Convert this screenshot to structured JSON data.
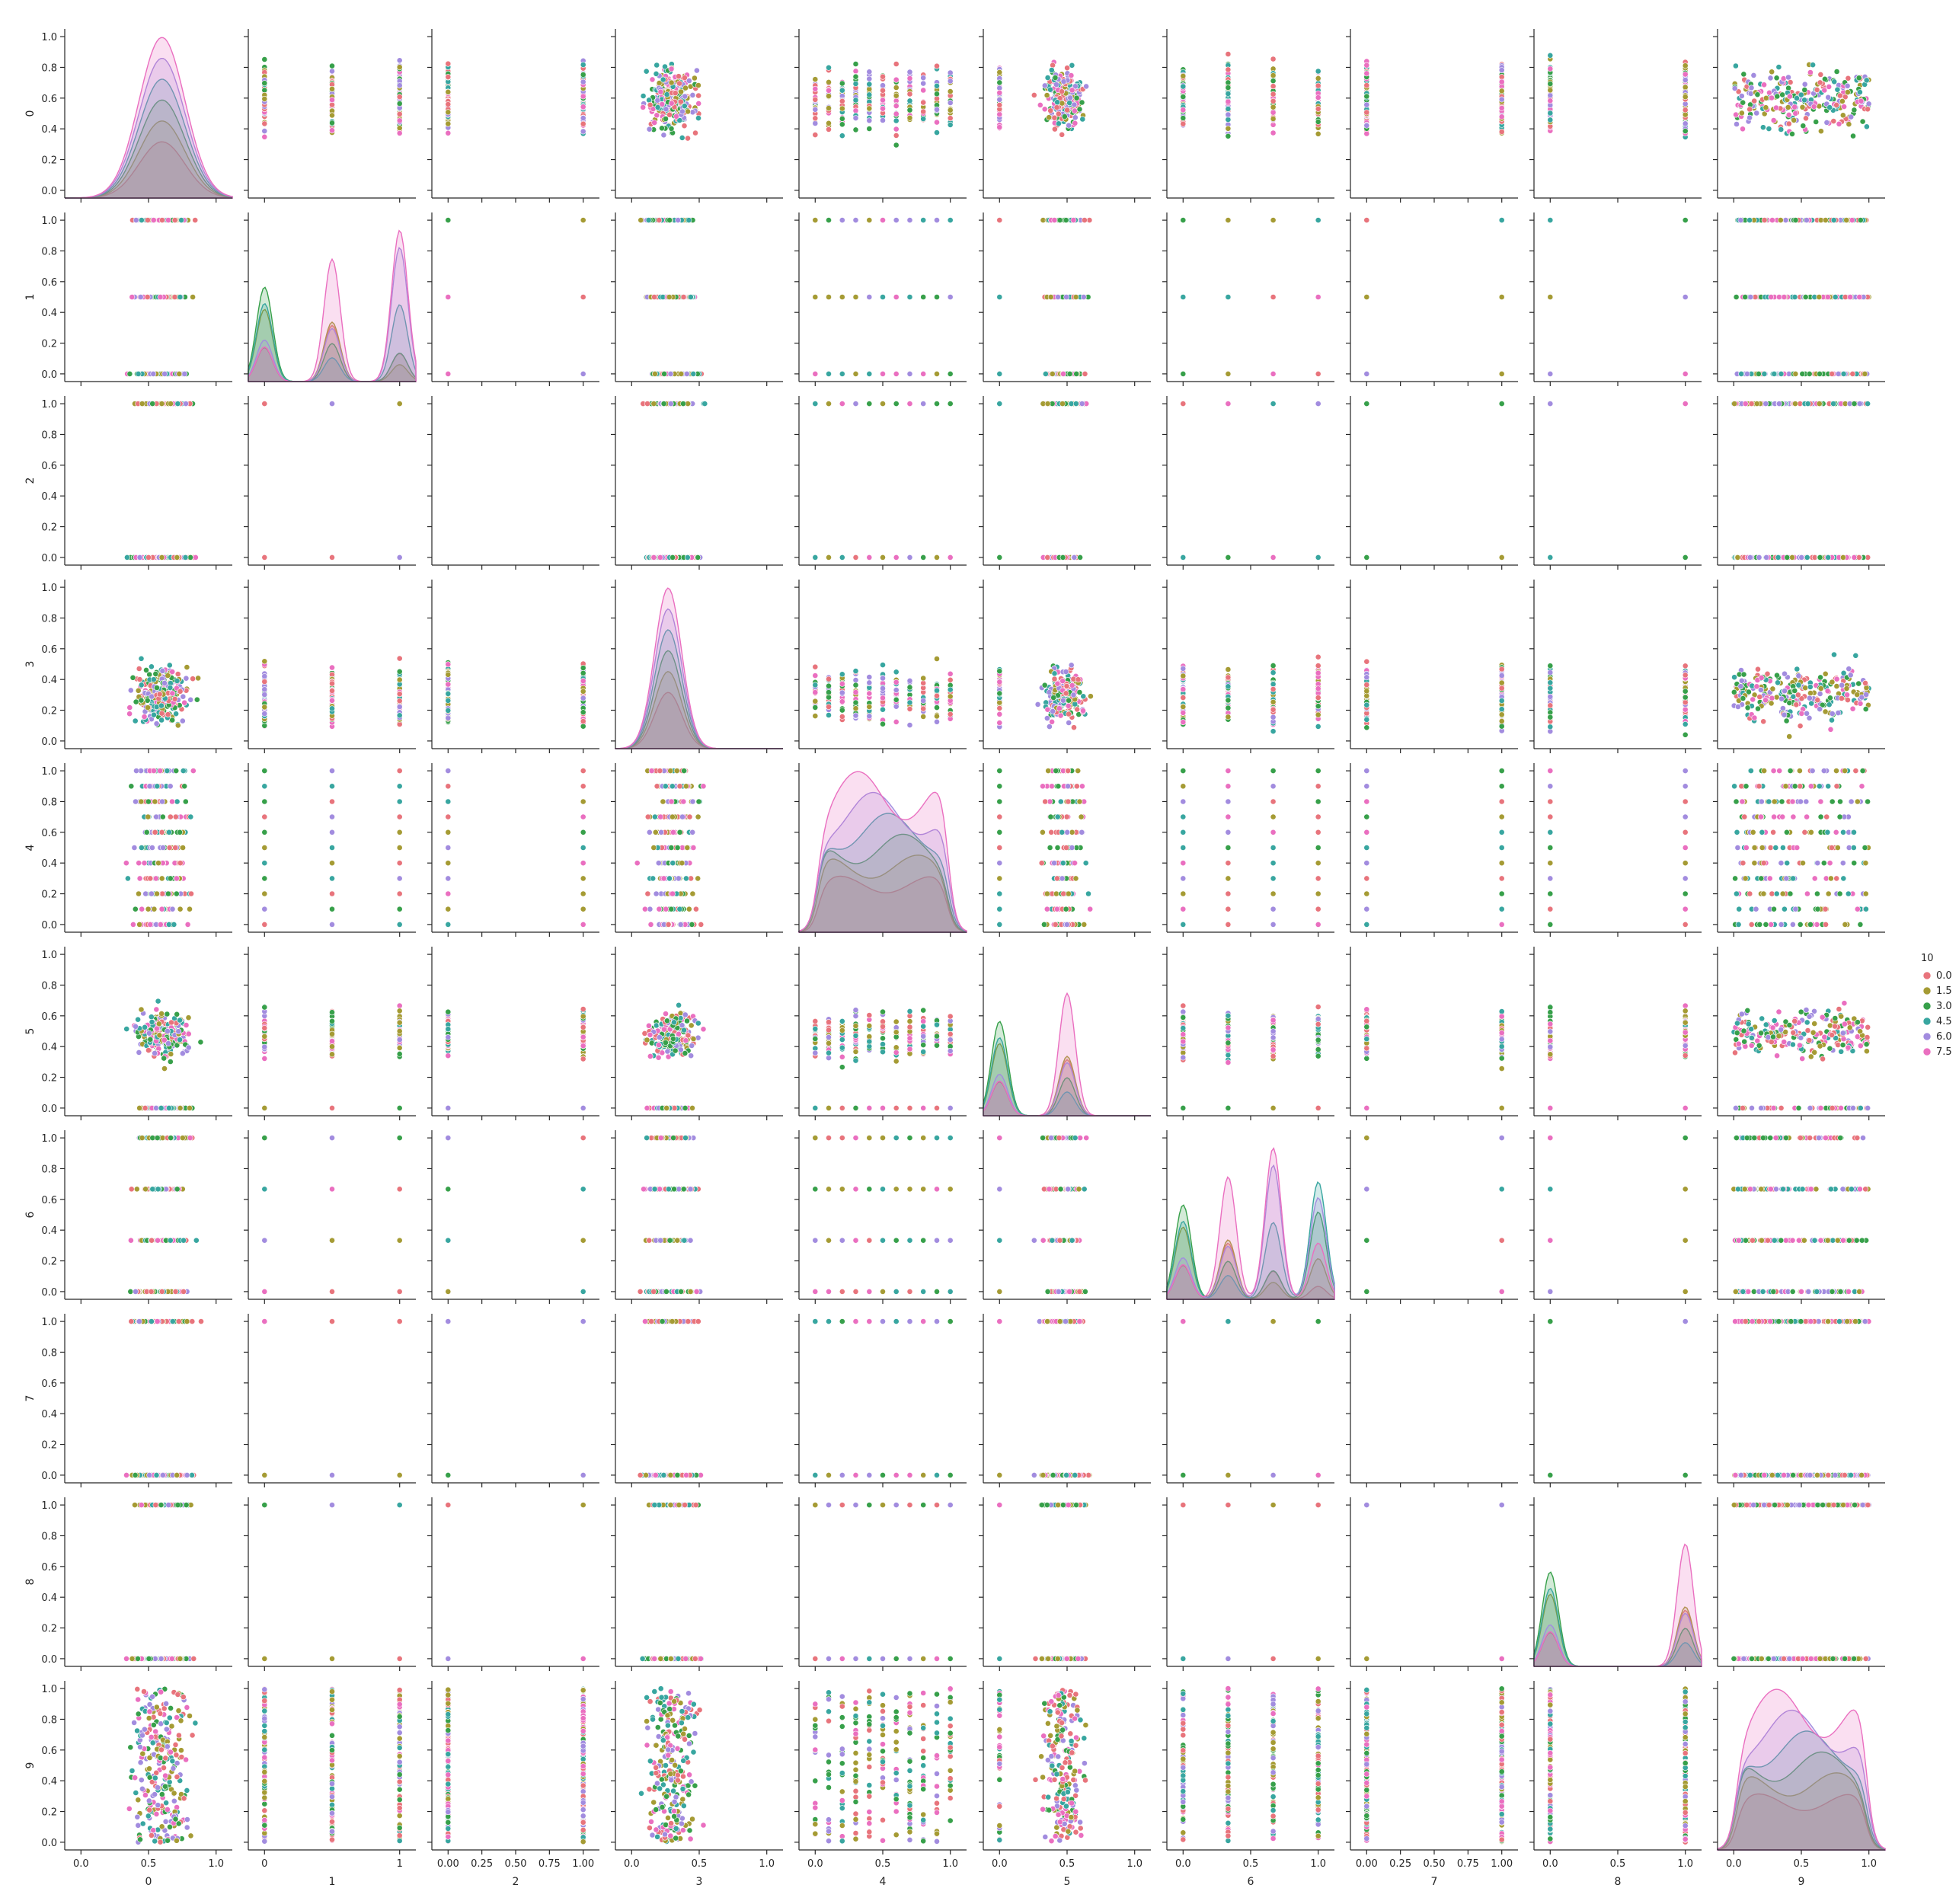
{
  "chart_data": {
    "type": "pairplot",
    "variables": [
      "0",
      "1",
      "2",
      "3",
      "4",
      "5",
      "6",
      "7",
      "8",
      "9"
    ],
    "hue": {
      "title": "10",
      "levels": [
        {
          "label": "0.0",
          "color": "#e8747c"
        },
        {
          "label": "1.5",
          "color": "#a59b34"
        },
        {
          "label": "3.0",
          "color": "#37a04a"
        },
        {
          "label": "4.5",
          "color": "#38a6a0"
        },
        {
          "label": "6.0",
          "color": "#a28cdf"
        },
        {
          "label": "7.5",
          "color": "#ea6fc0"
        }
      ]
    },
    "legend": "right",
    "grid": false,
    "ylim": [
      0,
      1
    ],
    "x_ticks": [
      [
        "0.0",
        "0.5",
        "1.0"
      ],
      [
        "0",
        "1"
      ],
      [
        "0.00",
        "0.25",
        "0.50",
        "0.75",
        "1.00"
      ],
      [
        "0.0",
        "0.5",
        "1.0"
      ],
      [
        "0.0",
        "0.5",
        "1.0"
      ],
      [
        "0.0",
        "0.5",
        "1.0"
      ],
      [
        "0.0",
        "0.5",
        "1.0"
      ],
      [
        "0.00",
        "0.25",
        "0.50",
        "0.75",
        "1.00"
      ],
      [
        "0.0",
        "0.5",
        "1.0"
      ],
      [
        "0.0",
        "0.5",
        "1.0"
      ]
    ],
    "y_ticks": [
      "0.0",
      "0.2",
      "0.4",
      "0.6",
      "0.8",
      "1.0"
    ],
    "discrete_levels": {
      "0": "continuous",
      "1": [
        0,
        0.5,
        1
      ],
      "2": [
        0,
        1
      ],
      "3": "continuous",
      "4": [
        0,
        0.1,
        0.2,
        0.3,
        0.4,
        0.5,
        0.6,
        0.7,
        0.8,
        0.9,
        1.0
      ],
      "5": "continuous",
      "6": [
        0,
        0.333,
        0.667,
        1
      ],
      "7": [
        0,
        1
      ],
      "8": [
        0,
        1
      ],
      "9": "continuous"
    },
    "diagonal_kde": {
      "0": {
        "peak": 0.6,
        "width": 0.17
      },
      "1": {
        "modes": [
          0,
          0.5,
          1
        ]
      },
      "3": {
        "peak": 0.27,
        "width": 0.1
      },
      "4": {
        "shape": "plateau",
        "range": [
          0,
          1
        ]
      },
      "5": {
        "modes": [
          0,
          0.5
        ]
      },
      "6": {
        "modes": [
          0,
          0.333,
          0.667,
          1
        ]
      },
      "8": {
        "modes": [
          0,
          1
        ]
      },
      "9": {
        "shape": "plateau",
        "range": [
          0,
          1
        ]
      }
    }
  }
}
